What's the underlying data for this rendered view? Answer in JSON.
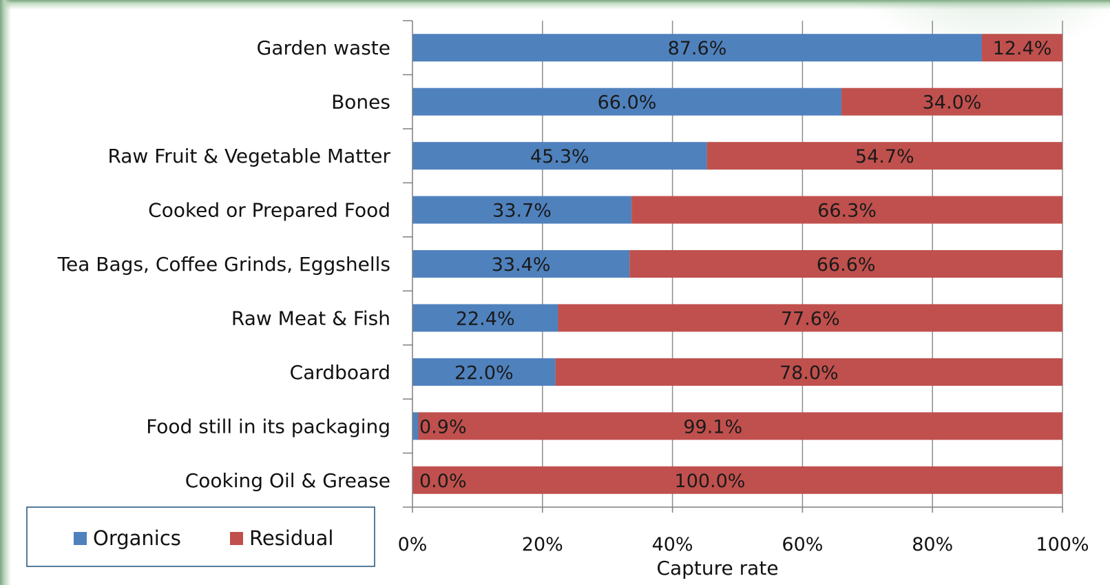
{
  "colors": {
    "organics": "#4f81bd",
    "residual": "#c0504d",
    "gridline": "#8c8c8c",
    "axis": "#7f7f7f",
    "legend_border": "#1f4e79"
  },
  "chart_data": {
    "type": "bar",
    "orientation": "horizontal",
    "stacked": true,
    "categories": [
      "Garden waste",
      "Bones",
      "Raw Fruit & Vegetable Matter",
      "Cooked or Prepared Food",
      "Tea Bags, Coffee  Grinds, Eggshells",
      "Raw Meat & Fish",
      "Cardboard",
      "Food still in its packaging",
      "Cooking Oil & Grease"
    ],
    "series": [
      {
        "name": "Organics",
        "values": [
          87.6,
          66.0,
          45.3,
          33.7,
          33.4,
          22.4,
          22.0,
          0.9,
          0.0
        ],
        "labels": [
          "87.6%",
          "66.0%",
          "45.3%",
          "33.7%",
          "33.4%",
          "22.4%",
          "22.0%",
          "0.9%",
          "0.0%"
        ]
      },
      {
        "name": "Residual",
        "values": [
          12.4,
          34.0,
          54.7,
          66.3,
          66.6,
          77.6,
          78.0,
          99.1,
          100.0
        ],
        "labels": [
          "12.4%",
          "34.0%",
          "54.7%",
          "66.3%",
          "66.6%",
          "77.6%",
          "78.0%",
          "99.1%",
          "100.0%"
        ]
      }
    ],
    "xlabel": "Capture rate",
    "xlim": [
      0,
      100
    ],
    "xticks": [
      0,
      20,
      40,
      60,
      80,
      100
    ],
    "xtick_labels": [
      "0%",
      "20%",
      "40%",
      "60%",
      "80%",
      "100%"
    ],
    "grid": "vertical",
    "legend_position": "bottom-left"
  }
}
